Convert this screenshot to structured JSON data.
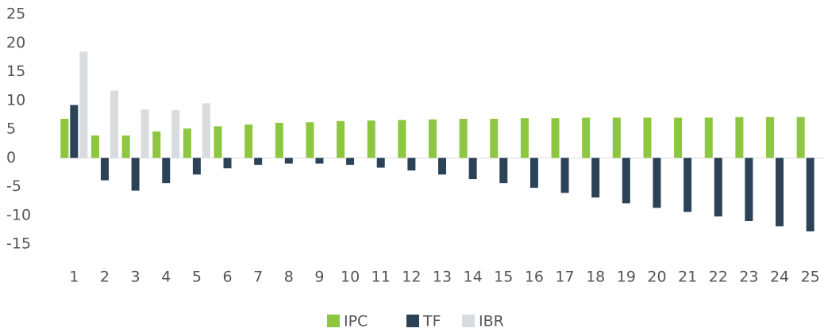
{
  "chart_data": {
    "type": "bar",
    "categories": [
      "1",
      "2",
      "3",
      "4",
      "5",
      "6",
      "7",
      "8",
      "9",
      "10",
      "11",
      "12",
      "13",
      "14",
      "15",
      "16",
      "17",
      "18",
      "19",
      "20",
      "21",
      "22",
      "23",
      "24",
      "25"
    ],
    "series": [
      {
        "name": "IPC",
        "color": "#8dc63f",
        "values": [
          6.8,
          3.9,
          3.9,
          4.6,
          5.1,
          5.5,
          5.8,
          6.1,
          6.2,
          6.4,
          6.5,
          6.6,
          6.7,
          6.8,
          6.8,
          6.9,
          6.9,
          7.0,
          7.0,
          7.0,
          7.0,
          7.0,
          7.1,
          7.1,
          7.1
        ]
      },
      {
        "name": "TF",
        "color": "#2b4257",
        "values": [
          9.2,
          -3.9,
          -5.7,
          -4.4,
          -2.9,
          -1.8,
          -1.2,
          -1.0,
          -1.0,
          -1.2,
          -1.7,
          -2.2,
          -2.9,
          -3.7,
          -4.4,
          -5.2,
          -6.1,
          -6.9,
          -7.9,
          -8.7,
          -9.4,
          -10.2,
          -11.0,
          -11.9,
          -12.8
        ]
      },
      {
        "name": "IBR",
        "color": "#d9dcdf",
        "values": [
          18.5,
          11.7,
          8.4,
          8.3,
          9.5,
          null,
          null,
          null,
          null,
          null,
          null,
          null,
          null,
          null,
          null,
          null,
          null,
          null,
          null,
          null,
          null,
          null,
          null,
          null,
          null
        ]
      }
    ],
    "ylim": [
      -15,
      25
    ],
    "yticks": [
      -15,
      -10,
      -5,
      0,
      5,
      10,
      15,
      20,
      25
    ],
    "legend": "bottom"
  }
}
